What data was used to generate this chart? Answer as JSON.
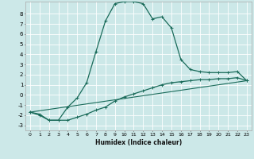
{
  "title": "",
  "xlabel": "Humidex (Indice chaleur)",
  "background_color": "#cce8e8",
  "grid_color": "#ffffff",
  "line_color": "#1a6b5a",
  "xlim": [
    -0.5,
    23.5
  ],
  "ylim": [
    -3.5,
    9.2
  ],
  "yticks": [
    -3,
    -2,
    -1,
    0,
    1,
    2,
    3,
    4,
    5,
    6,
    7,
    8
  ],
  "xticks": [
    0,
    1,
    2,
    3,
    4,
    5,
    6,
    7,
    8,
    9,
    10,
    11,
    12,
    13,
    14,
    15,
    16,
    17,
    18,
    19,
    20,
    21,
    22,
    23
  ],
  "line1_x": [
    0,
    1,
    2,
    3,
    4,
    5,
    6,
    7,
    8,
    9,
    10,
    11,
    12,
    13,
    14,
    15,
    16,
    17,
    18,
    19,
    20,
    21,
    22,
    23
  ],
  "line1_y": [
    -1.7,
    -2.0,
    -2.5,
    -2.5,
    -1.2,
    -0.3,
    1.2,
    4.3,
    7.3,
    9.0,
    9.2,
    9.2,
    9.0,
    7.5,
    7.7,
    6.6,
    3.5,
    2.5,
    2.3,
    2.2,
    2.2,
    2.2,
    2.3,
    1.4
  ],
  "line2_x": [
    0,
    1,
    2,
    3,
    4,
    5,
    6,
    7,
    8,
    9,
    10,
    11,
    12,
    13,
    14,
    15,
    16,
    17,
    18,
    19,
    20,
    21,
    22,
    23
  ],
  "line2_y": [
    -1.7,
    -1.9,
    -2.5,
    -2.5,
    -2.5,
    -2.2,
    -1.9,
    -1.5,
    -1.2,
    -0.6,
    -0.2,
    0.1,
    0.4,
    0.7,
    1.0,
    1.2,
    1.3,
    1.4,
    1.5,
    1.5,
    1.6,
    1.6,
    1.7,
    1.4
  ],
  "line3_x": [
    0,
    23
  ],
  "line3_y": [
    -1.7,
    1.4
  ]
}
